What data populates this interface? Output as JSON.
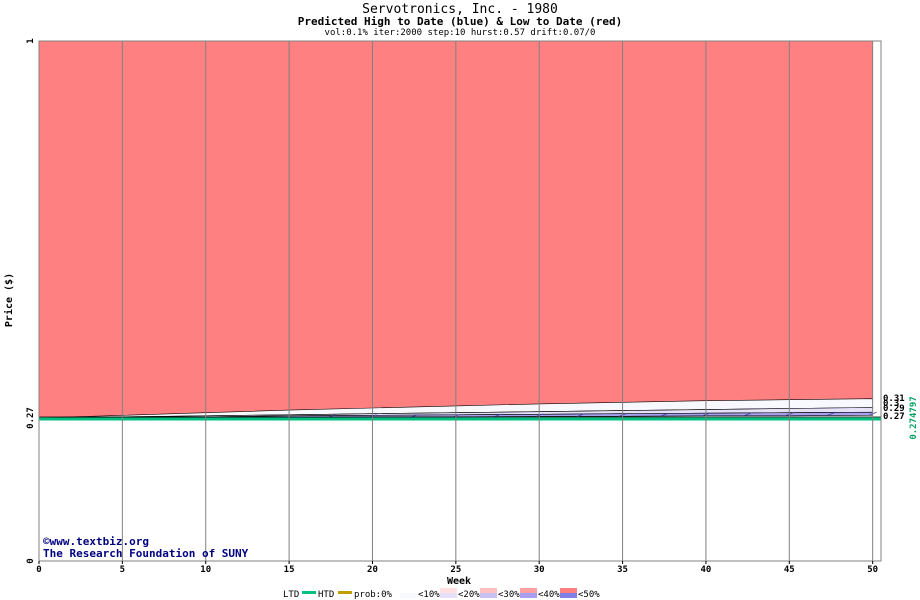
{
  "title": "Servotronics, Inc. - 1980",
  "subtitle": "Predicted High to Date (blue) &  Low to Date (red)",
  "params": "vol:0.1% iter:2000 step:10 hurst:0.57 drift:0.07/0",
  "credits": {
    "line1": "©www.textbiz.org",
    "line2": "The Research Foundation of SUNY"
  },
  "legend": {
    "ltd": "LTD",
    "htd": "HTD",
    "prob": "prob:0%",
    "bins": [
      "<10%",
      "<20%",
      "<30%",
      "<40%",
      "<50%"
    ],
    "colors": {
      "ltd": "#00c080",
      "htd": "#c0a000",
      "bins": [
        "#f8f8ff",
        "#e6e0f8",
        "#c8c0f0",
        "#a8a0f0",
        "#8080e8"
      ],
      "red_bins": [
        "#ffffff",
        "#ffe0e0",
        "#ffc0c0",
        "#ffa0a0",
        "#ff8080"
      ]
    }
  },
  "chart_data": {
    "type": "area",
    "xlabel": "Week",
    "ylabel": "Price ($)",
    "xlim": [
      0,
      50.5
    ],
    "ylim": [
      0,
      1
    ],
    "x_ticks": [
      0,
      5,
      10,
      15,
      20,
      25,
      30,
      35,
      40,
      45,
      50
    ],
    "y_ticks": [
      "0",
      "0.27",
      "1"
    ],
    "grid": true,
    "current_price": 0.274797,
    "current_price_label": "0.274797",
    "right_labels": [
      "0.31",
      "0.3",
      "0.29",
      "0.27"
    ],
    "bands": {
      "weeks": [
        0,
        5,
        10,
        15,
        20,
        25,
        30,
        35,
        40,
        45,
        50
      ],
      "low_red_top": [
        0.275,
        0.28,
        0.285,
        0.29,
        0.294,
        0.298,
        0.302,
        0.305,
        0.308,
        0.31,
        0.312
      ],
      "high_10": [
        0.275,
        0.277,
        0.279,
        0.281,
        0.283,
        0.285,
        0.287,
        0.289,
        0.291,
        0.293,
        0.295
      ],
      "high_20": [
        0.275,
        0.276,
        0.277,
        0.279,
        0.28,
        0.281,
        0.282,
        0.283,
        0.284,
        0.285,
        0.286
      ],
      "high_40": [
        0.275,
        0.275,
        0.276,
        0.276,
        0.277,
        0.277,
        0.278,
        0.278,
        0.279,
        0.279,
        0.28
      ]
    }
  }
}
